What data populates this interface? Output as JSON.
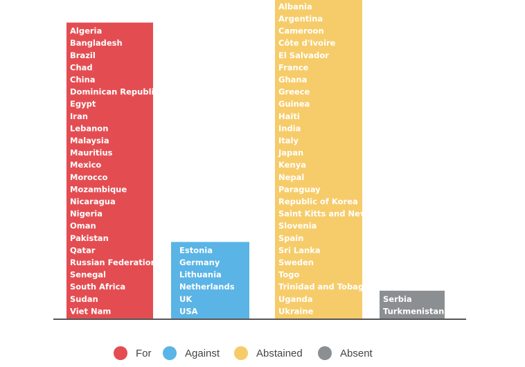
{
  "chart_data": {
    "type": "bar",
    "categories": [
      "For",
      "Against",
      "Abstained",
      "Absent"
    ],
    "values": [
      24,
      6,
      26,
      2
    ],
    "colors": [
      "#e34d52",
      "#5ab4e5",
      "#f6cc6a",
      "#8c8f91"
    ],
    "members": [
      [
        "Algeria",
        "Bangladesh",
        "Brazil",
        "Chad",
        "China",
        "Dominican Republic",
        "Egypt",
        "Iran",
        "Lebanon",
        "Malaysia",
        "Mauritius",
        "Mexico",
        "Morocco",
        "Mozambique",
        "Nicaragua",
        "Nigeria",
        "Oman",
        "Pakistan",
        "Qatar",
        "Russian Federation",
        "Senegal",
        "South Africa",
        "Sudan",
        "Viet Nam"
      ],
      [
        "Estonia",
        "Germany",
        "Lithuania",
        "Netherlands",
        "UK",
        "USA"
      ],
      [
        "Albania",
        "Argentina",
        "Cameroon",
        "Côte d'Ivoire",
        "El Salvador",
        "France",
        "Ghana",
        "Greece",
        "Guinea",
        "Haiti",
        "India",
        "Italy",
        "Japan",
        "Kenya",
        "Nepal",
        "Paraguay",
        "Republic of Korea",
        "Saint Kitts and Nevis",
        "Slovenia",
        "Spain",
        "Sri Lanka",
        "Sweden",
        "Togo",
        "Trinidad and Tobago",
        "Uganda",
        "Ukraine"
      ],
      [
        "Serbia",
        "Turkmenistan"
      ]
    ],
    "legend": [
      {
        "label": "For",
        "color": "#e34d52"
      },
      {
        "label": "Against",
        "color": "#5ab4e5"
      },
      {
        "label": "Abstained",
        "color": "#f6cc6a"
      },
      {
        "label": "Absent",
        "color": "#8c8f91"
      }
    ],
    "legend_position": "bottom",
    "grid": false
  }
}
